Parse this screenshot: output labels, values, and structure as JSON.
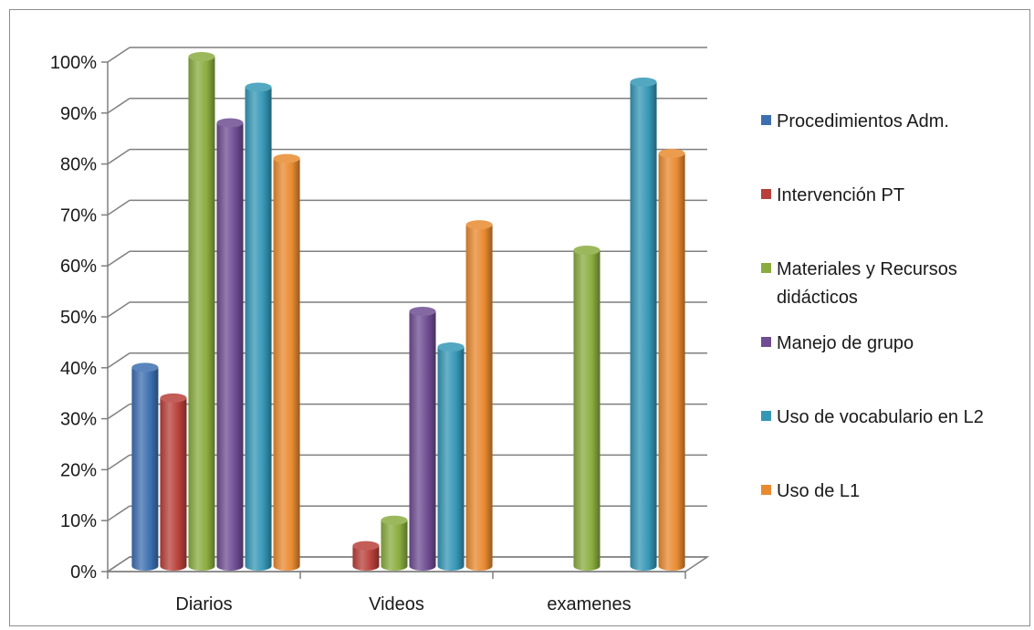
{
  "chart_data": {
    "type": "bar",
    "title": "",
    "xlabel": "",
    "ylabel": "",
    "categories": [
      "Diarios",
      "Videos",
      "examenes"
    ],
    "ylim": [
      0,
      100
    ],
    "y_ticks": [
      "0%",
      "10%",
      "20%",
      "30%",
      "40%",
      "50%",
      "60%",
      "70%",
      "80%",
      "90%",
      "100%"
    ],
    "grid": true,
    "legend_position": "right",
    "series": [
      {
        "name": "Procedimientos Adm.",
        "color": "#3d6fb0",
        "values": [
          39,
          0,
          0
        ]
      },
      {
        "name": "Intervención PT",
        "color": "#b8403b",
        "values": [
          33,
          4,
          0
        ]
      },
      {
        "name": "Materiales y Recursos\ndidácticos",
        "color": "#8aac3f",
        "values": [
          100,
          9,
          62
        ]
      },
      {
        "name": "Manejo de grupo",
        "color": "#6e4d92",
        "values": [
          87,
          50,
          0
        ]
      },
      {
        "name": "Uso de vocabulario en L2",
        "color": "#3597b6",
        "values": [
          94,
          43,
          95
        ]
      },
      {
        "name": "Uso de L1",
        "color": "#e88a30",
        "values": [
          80,
          67,
          81
        ]
      }
    ]
  }
}
